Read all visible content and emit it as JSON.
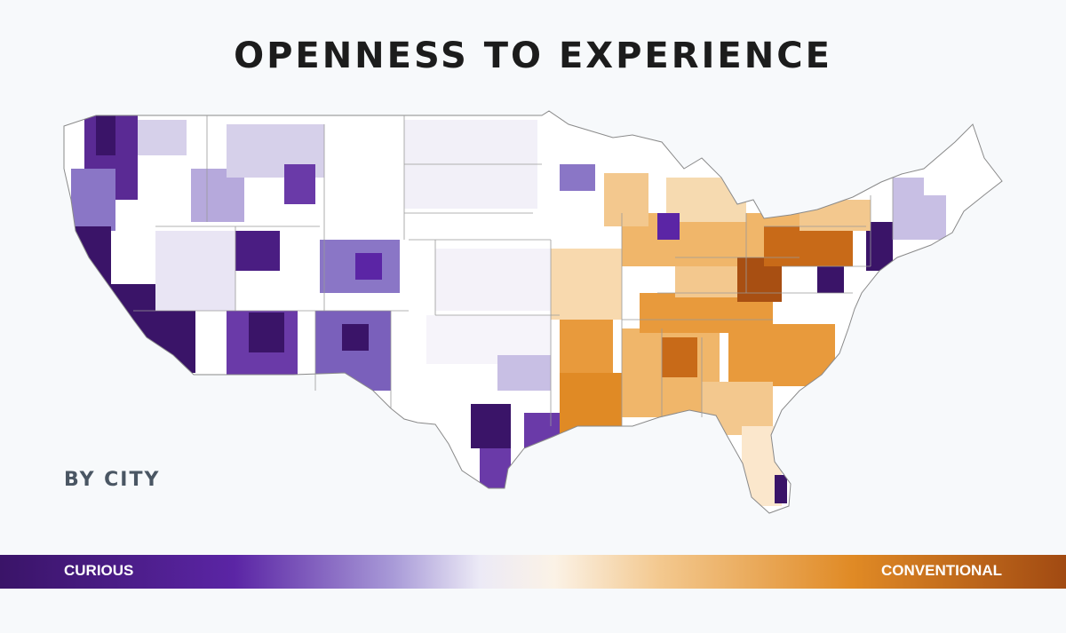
{
  "title": "OPENNESS TO EXPERIENCE",
  "subtitle": "BY CITY",
  "legend": {
    "left_label": "CURIOUS",
    "right_label": "CONVENTIONAL"
  },
  "colors": {
    "background": "#f7f9fb",
    "curious_strong": "#3a1468",
    "curious_mid": "#8a76c6",
    "curious_light": "#d6d0ea",
    "neutral": "#ffffff",
    "conventional_light": "#f8d9ae",
    "conventional_mid": "#e89a3c",
    "conventional_strong": "#a84f12",
    "borders": "#8a8a8a"
  }
}
